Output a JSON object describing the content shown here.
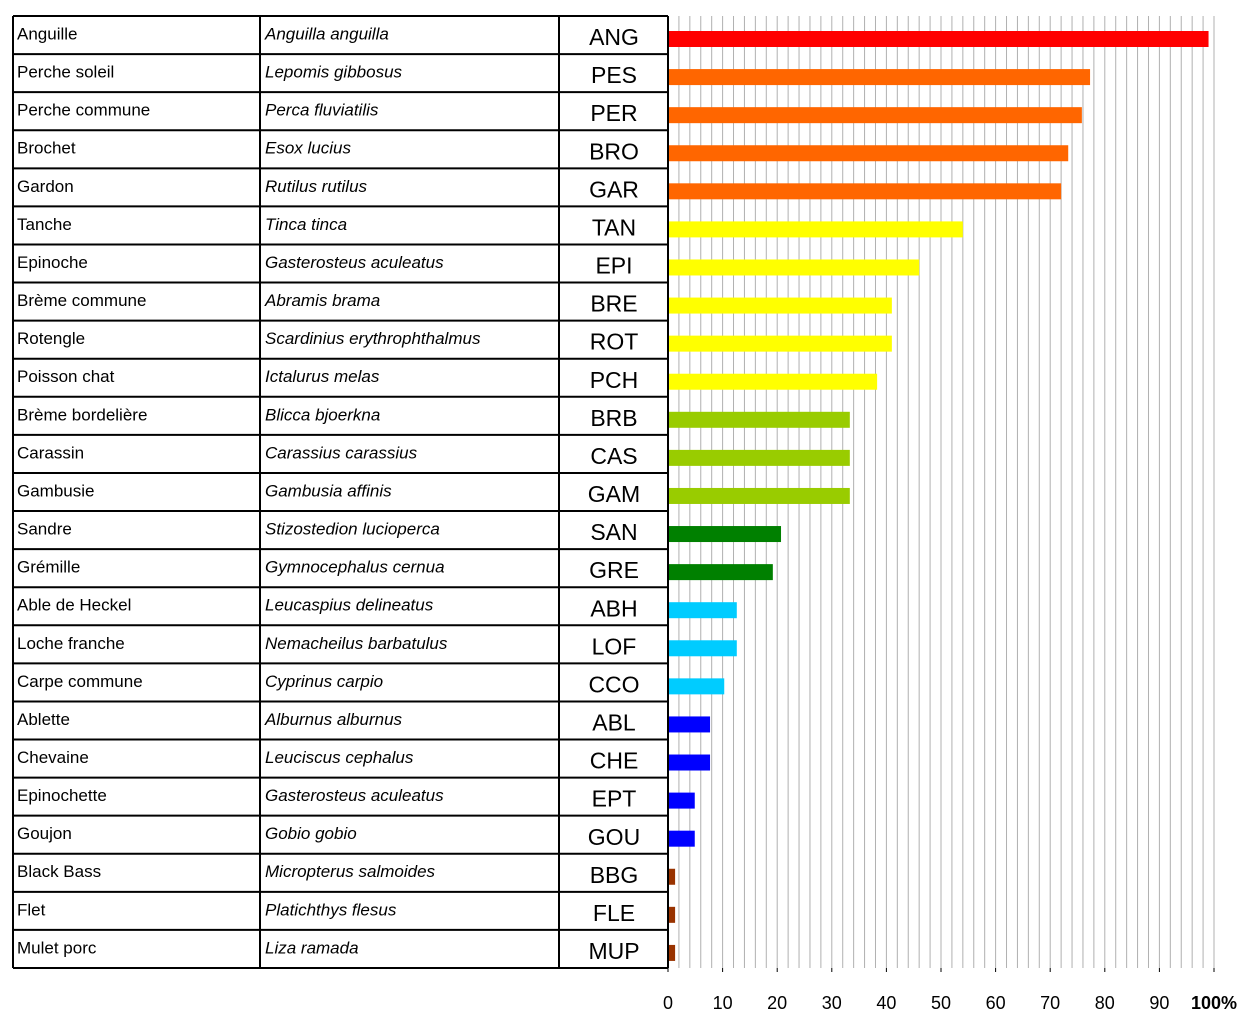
{
  "chart_data": {
    "type": "barh",
    "common_names": [
      "Anguille",
      "Perche soleil",
      "Perche commune",
      "Brochet",
      "Gardon",
      "Tanche",
      "Epinoche",
      "Brème commune",
      "Rotengle",
      "Poisson chat",
      "Brème bordelière",
      "Carassin",
      "Gambusie",
      "Sandre",
      "Grémille",
      "Able de Heckel",
      "Loche franche",
      "Carpe commune",
      "Ablette",
      "Chevaine",
      "Epinochette",
      "Goujon",
      "Black Bass",
      "Flet",
      "Mulet porc"
    ],
    "scientific_names": [
      "Anguilla anguilla",
      "Lepomis gibbosus",
      "Perca fluviatilis",
      "Esox lucius",
      "Rutilus rutilus",
      "Tinca tinca",
      "Gasterosteus aculeatus",
      "Abramis brama",
      "Scardinius erythrophthalmus",
      "Ictalurus melas",
      "Blicca bjoerkna",
      "Carassius carassius",
      "Gambusia affinis",
      "Stizostedion lucioperca",
      "Gymnocephalus cernua",
      "Leucaspius delineatus",
      "Nemacheilus barbatulus",
      "Cyprinus carpio",
      "Alburnus alburnus",
      "Leuciscus cephalus",
      "Gasterosteus aculeatus",
      "Gobio gobio",
      "Micropterus salmoides",
      "Platichthys flesus",
      "Liza ramada"
    ],
    "categories": [
      "ANG",
      "PES",
      "PER",
      "BRO",
      "GAR",
      "TAN",
      "EPI",
      "BRE",
      "ROT",
      "PCH",
      "BRB",
      "CAS",
      "GAM",
      "SAN",
      "GRE",
      "ABH",
      "LOF",
      "CCO",
      "ABL",
      "CHE",
      "EPT",
      "GOU",
      "BBG",
      "FLE",
      "MUP"
    ],
    "values": [
      99,
      77.3,
      75.8,
      73.3,
      72,
      54,
      46,
      41,
      41,
      38.3,
      33.3,
      33.3,
      33.3,
      20.7,
      19.2,
      12.6,
      12.6,
      10.3,
      7.7,
      7.7,
      4.9,
      4.9,
      1.3,
      1.3,
      1.3
    ],
    "colors": [
      "#ff0000",
      "#ff6600",
      "#ff6600",
      "#ff6600",
      "#ff6600",
      "#ffff00",
      "#ffff00",
      "#ffff00",
      "#ffff00",
      "#ffff00",
      "#99cc00",
      "#99cc00",
      "#99cc00",
      "#008000",
      "#008000",
      "#00ccff",
      "#00ccff",
      "#00ccff",
      "#0000ff",
      "#0000ff",
      "#0000ff",
      "#0000ff",
      "#993300",
      "#993300",
      "#993300"
    ],
    "xlim": [
      0,
      100
    ],
    "xticks": [
      0,
      10,
      20,
      30,
      40,
      50,
      60,
      70,
      80,
      90,
      {
        "value": 100,
        "label": "100%"
      }
    ],
    "gridlines": [
      2,
      4,
      6,
      8,
      10,
      12,
      14,
      16,
      18,
      20,
      22,
      24,
      26,
      28,
      30,
      32,
      34,
      36,
      38,
      40,
      42,
      44,
      46,
      48,
      50,
      52,
      54,
      56,
      58,
      60,
      62,
      64,
      66,
      68,
      70,
      72,
      74,
      76,
      78,
      80,
      82,
      84,
      86,
      88,
      90,
      92,
      94,
      96,
      98,
      100
    ]
  }
}
